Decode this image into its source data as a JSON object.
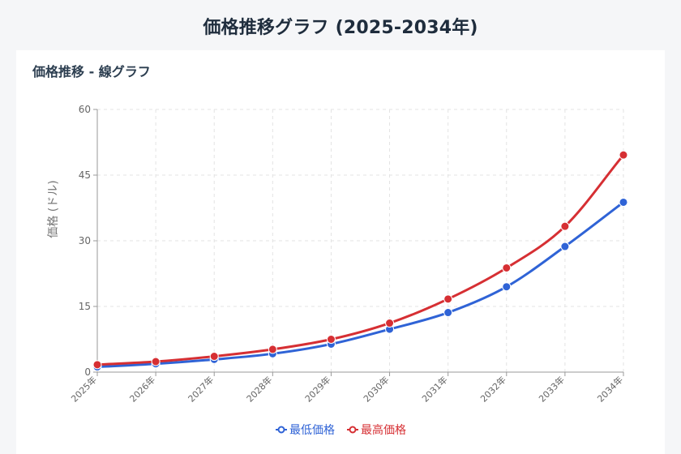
{
  "page_title": "価格推移グラフ (2025-2034年)",
  "section_title": "価格推移 - 線グラフ",
  "chart_data": {
    "type": "line",
    "title": "価格推移 - 線グラフ",
    "xlabel": "",
    "ylabel": "価格 (ドル)",
    "ylim": [
      0,
      60
    ],
    "yticks": [
      0,
      15,
      30,
      45,
      60
    ],
    "grid": true,
    "legend_position": "bottom-center",
    "categories": [
      "2025年",
      "2026年",
      "2027年",
      "2028年",
      "2029年",
      "2030年",
      "2031年",
      "2032年",
      "2033年",
      "2034年"
    ],
    "series": [
      {
        "name": "最低価格",
        "color": "#2f63d6",
        "values": [
          1.2,
          1.9,
          2.9,
          4.2,
          6.4,
          9.8,
          13.6,
          19.5,
          28.7,
          38.8
        ]
      },
      {
        "name": "最高価格",
        "color": "#d62f33",
        "values": [
          1.7,
          2.4,
          3.6,
          5.2,
          7.5,
          11.2,
          16.7,
          23.8,
          33.3,
          49.6
        ]
      }
    ]
  }
}
